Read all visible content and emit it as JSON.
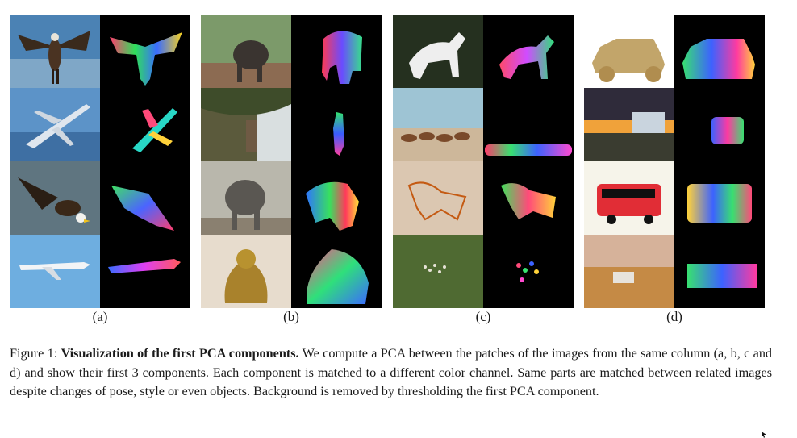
{
  "figure": {
    "panel_labels": [
      "(a)",
      "(b)",
      "(c)",
      "(d)"
    ],
    "caption": {
      "label": "Figure 1:",
      "title": "Visualization of the first PCA components.",
      "text": "We compute a PCA between the patches of the images from the same column (a, b, c and d) and show their first 3 components. Each component is matched to a different color channel. Same parts are matched between related images despite changes of pose, style or even objects. Background is removed by thresholding the first PCA component."
    },
    "panels": [
      {
        "rows": [
          "eagle-spread-wings",
          "airplane-over-sea",
          "bald-eagle-flying",
          "airliner-in-sky"
        ]
      },
      {
        "rows": [
          "elephant-savanna",
          "elephant-under-tree",
          "elephant-in-enclosure",
          "golden-ganesha-statue"
        ]
      },
      {
        "rows": [
          "white-horse-running",
          "herd-of-horses",
          "horse-drawing",
          "herd-aerial-view"
        ]
      },
      {
        "rows": [
          "cardboard-car",
          "bus-on-road",
          "red-bus-drawing",
          "suv-in-desert"
        ]
      }
    ]
  }
}
